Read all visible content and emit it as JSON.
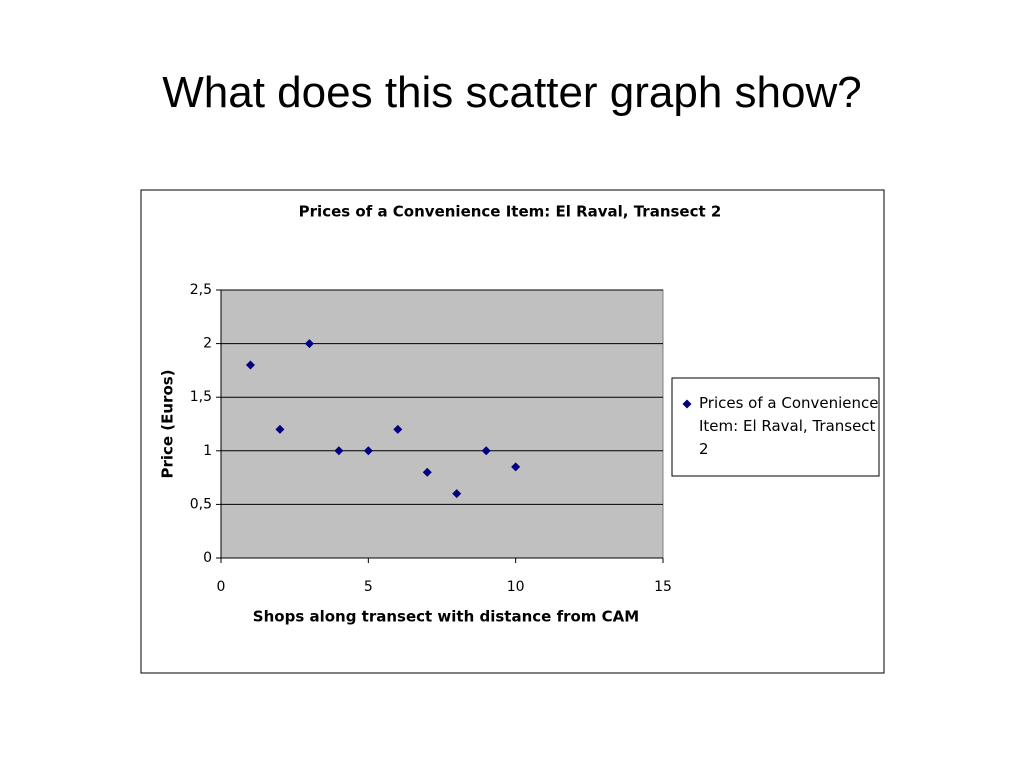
{
  "slide_title": "What does this scatter graph show?",
  "chart_data": {
    "type": "scatter",
    "title": "Prices of a Convenience Item: El Raval, Transect 2",
    "x_label": "Shops along transect with distance from CAM",
    "y_label": "Price (Euros)",
    "x": [
      1,
      2,
      3,
      4,
      5,
      6,
      7,
      8,
      9,
      10
    ],
    "series": [
      {
        "name": "Prices of a Convenience Item: El Raval, Transect 2",
        "color": "#000080",
        "values": [
          1.8,
          1.2,
          2.0,
          1.0,
          1.0,
          1.2,
          0.8,
          0.6,
          1.0,
          0.85
        ]
      }
    ],
    "xlim": [
      0,
      15
    ],
    "xticks": [
      0,
      5,
      10,
      15
    ],
    "ylim": [
      0,
      2.5
    ],
    "yticks": [
      0,
      {
        "value": 0.5,
        "label": "0,5"
      },
      1,
      {
        "value": 1.5,
        "label": "1,5"
      },
      2,
      {
        "value": 2.5,
        "label": "2,5"
      }
    ],
    "grid": true,
    "plot_background": "#c0c0c0",
    "legend": "right"
  }
}
